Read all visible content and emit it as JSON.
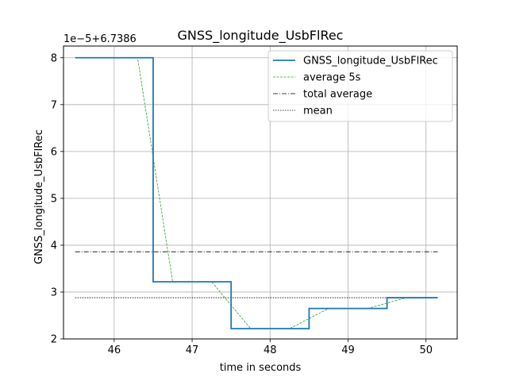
{
  "chart_data": {
    "type": "line",
    "title": "GNSS_longitude_UsbFlRec",
    "xlabel": "time in seconds",
    "ylabel": "GNSS_longitude_UsbFlRec",
    "y_offset_label": "1e−5+6.7386",
    "xlim": [
      45.35,
      50.4
    ],
    "ylim": [
      2.0,
      8.25
    ],
    "xticks": [
      46,
      47,
      48,
      49,
      50
    ],
    "yticks": [
      2,
      3,
      4,
      5,
      6,
      7,
      8
    ],
    "grid": true,
    "legend_position": "top-right",
    "series": [
      {
        "name": "GNSS_longitude_UsbFlRec",
        "style": "step",
        "color": "#1f77b4",
        "points": [
          [
            45.5,
            8.0
          ],
          [
            46.5,
            8.0
          ],
          [
            46.5,
            3.22
          ],
          [
            47.5,
            3.22
          ],
          [
            47.5,
            2.22
          ],
          [
            48.5,
            2.22
          ],
          [
            48.5,
            2.65
          ],
          [
            49.5,
            2.65
          ],
          [
            49.5,
            2.88
          ],
          [
            50.15,
            2.88
          ]
        ]
      },
      {
        "name": "average 5s",
        "style": "dashed",
        "color": "#2ca02c",
        "points": [
          [
            45.5,
            8.0
          ],
          [
            46.3,
            8.0
          ],
          [
            46.75,
            3.22
          ],
          [
            47.25,
            3.22
          ],
          [
            47.75,
            2.22
          ],
          [
            48.25,
            2.22
          ],
          [
            48.75,
            2.65
          ],
          [
            49.25,
            2.65
          ],
          [
            49.75,
            2.88
          ],
          [
            50.15,
            2.88
          ]
        ]
      },
      {
        "name": "total average",
        "style": "dashdot",
        "color": "#000000",
        "points": [
          [
            45.5,
            3.86
          ],
          [
            50.15,
            3.86
          ]
        ]
      },
      {
        "name": "mean",
        "style": "dotted",
        "color": "#000000",
        "points": [
          [
            45.5,
            2.88
          ],
          [
            50.15,
            2.88
          ]
        ]
      }
    ]
  }
}
